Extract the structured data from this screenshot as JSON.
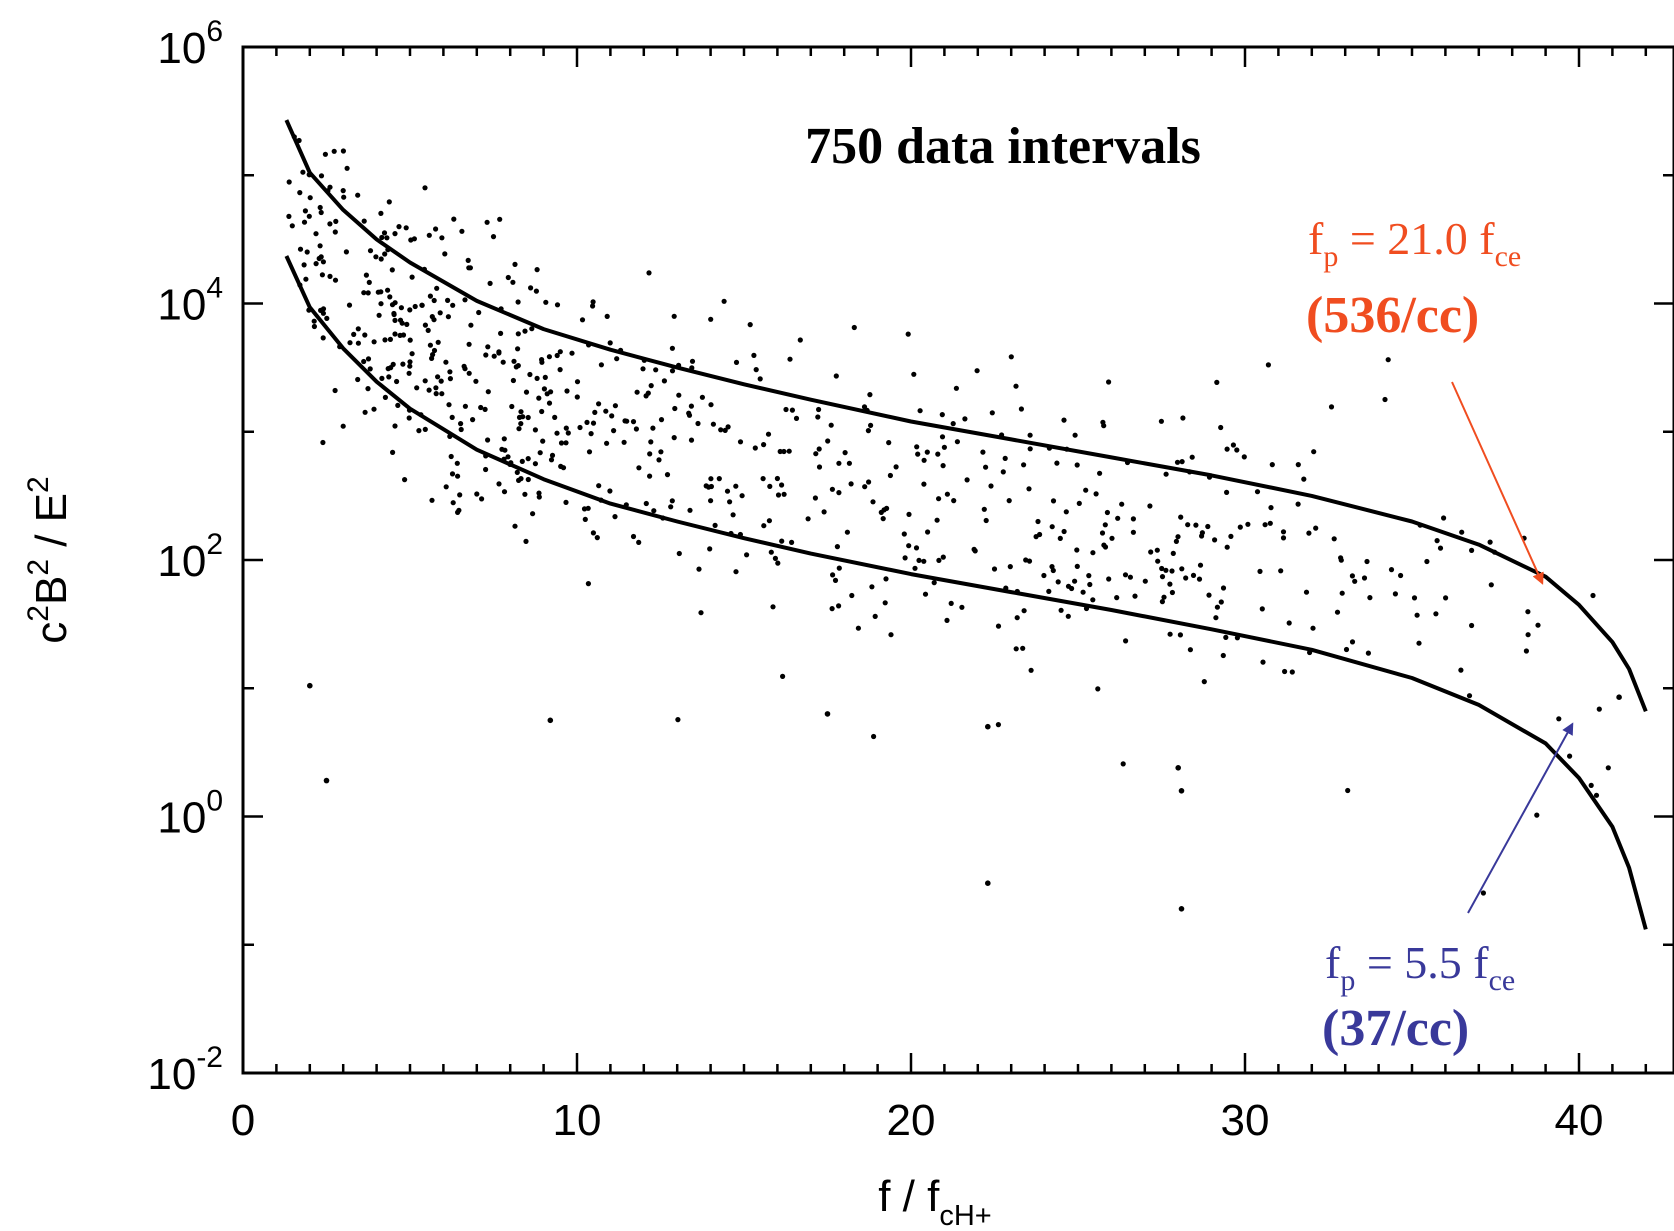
{
  "chart_data": {
    "type": "scatter",
    "title": "750 data intervals",
    "xlabel": {
      "base": "f / f",
      "sub": "cH+"
    },
    "ylabel": {
      "c": "c",
      "c_exp": "2",
      "b": "B",
      "b_exp": "2",
      "sep": " / E",
      "e_exp": "2"
    },
    "xlim": [
      0,
      42
    ],
    "ylim_log10": [
      -2,
      6
    ],
    "y_scale": "log",
    "grid": false,
    "x_ticks": [
      {
        "value": 0,
        "label": "0"
      },
      {
        "value": 10,
        "label": "10"
      },
      {
        "value": 20,
        "label": "20"
      },
      {
        "value": 30,
        "label": "30"
      },
      {
        "value": 40,
        "label": "40"
      }
    ],
    "y_ticks": [
      {
        "value": 6,
        "base": "10",
        "exp": "6"
      },
      {
        "value": 4,
        "base": "10",
        "exp": "4"
      },
      {
        "value": 2,
        "base": "10",
        "exp": "2"
      },
      {
        "value": 0,
        "base": "10",
        "exp": "0"
      },
      {
        "value": -2,
        "base": "10",
        "exp": "-2"
      }
    ],
    "series": [
      {
        "type": "line",
        "color": "#000000",
        "x": [
          1.3,
          2,
          3,
          4,
          5,
          7,
          9,
          11,
          13,
          15,
          17,
          20,
          23,
          26,
          29,
          32,
          35,
          37,
          39,
          40,
          41,
          41.5,
          42
        ],
        "log10_y": [
          5.43,
          5.02,
          4.73,
          4.5,
          4.32,
          4.02,
          3.8,
          3.64,
          3.5,
          3.37,
          3.25,
          3.08,
          2.94,
          2.8,
          2.66,
          2.5,
          2.3,
          2.12,
          1.87,
          1.65,
          1.36,
          1.15,
          0.82
        ]
      },
      {
        "type": "line",
        "color": "#000000",
        "x": [
          1.3,
          2,
          3,
          4,
          5,
          7,
          9,
          11,
          13,
          15,
          17,
          20,
          23,
          26,
          29,
          32,
          35,
          37,
          39,
          40,
          41,
          41.5,
          42
        ],
        "log10_y": [
          4.37,
          3.97,
          3.65,
          3.39,
          3.18,
          2.86,
          2.63,
          2.44,
          2.3,
          2.17,
          2.05,
          1.89,
          1.75,
          1.61,
          1.46,
          1.3,
          1.08,
          0.87,
          0.57,
          0.3,
          -0.08,
          -0.4,
          -0.88
        ]
      },
      {
        "type": "scatter",
        "count": 750,
        "color": "#000000",
        "density_profile": {
          "x": [
            1.3,
            3,
            6,
            10,
            15,
            20,
            25,
            30,
            35,
            40
          ],
          "weight": [
            60,
            130,
            150,
            120,
            80,
            70,
            70,
            50,
            30,
            5
          ]
        },
        "log10_y_range": [
          -0.8,
          5.3
        ],
        "outliers": [
          {
            "x": 2.5,
            "log10_y": 0.28
          },
          {
            "x": 22.3,
            "log10_y": -0.52
          },
          {
            "x": 28.1,
            "log10_y": -0.72
          },
          {
            "x": 9.2,
            "log10_y": 0.75
          },
          {
            "x": 28.0,
            "log10_y": 0.38
          },
          {
            "x": 28.1,
            "log10_y": 0.2
          },
          {
            "x": 17.5,
            "log10_y": 0.8
          },
          {
            "x": 22.3,
            "log10_y": 0.7
          },
          {
            "x": 2.0,
            "log10_y": 1.02
          },
          {
            "x": 41.2,
            "log10_y": 0.93
          }
        ]
      }
    ],
    "annotations": [
      {
        "prefix": "f",
        "prefix_sub": "p",
        "middle": " = 21.0 f",
        "suffix_sub": "ce",
        "density": "(536/cc)",
        "color": "#f04d20",
        "arrow_to": {
          "x": 38.9,
          "log10_y": 1.82
        }
      },
      {
        "prefix": "f",
        "prefix_sub": "p",
        "middle": " = 5.5 f",
        "suffix_sub": "ce",
        "density": "(37/cc)",
        "color": "#39399a",
        "arrow_to": {
          "x": 39.8,
          "log10_y": 0.72
        }
      }
    ]
  }
}
